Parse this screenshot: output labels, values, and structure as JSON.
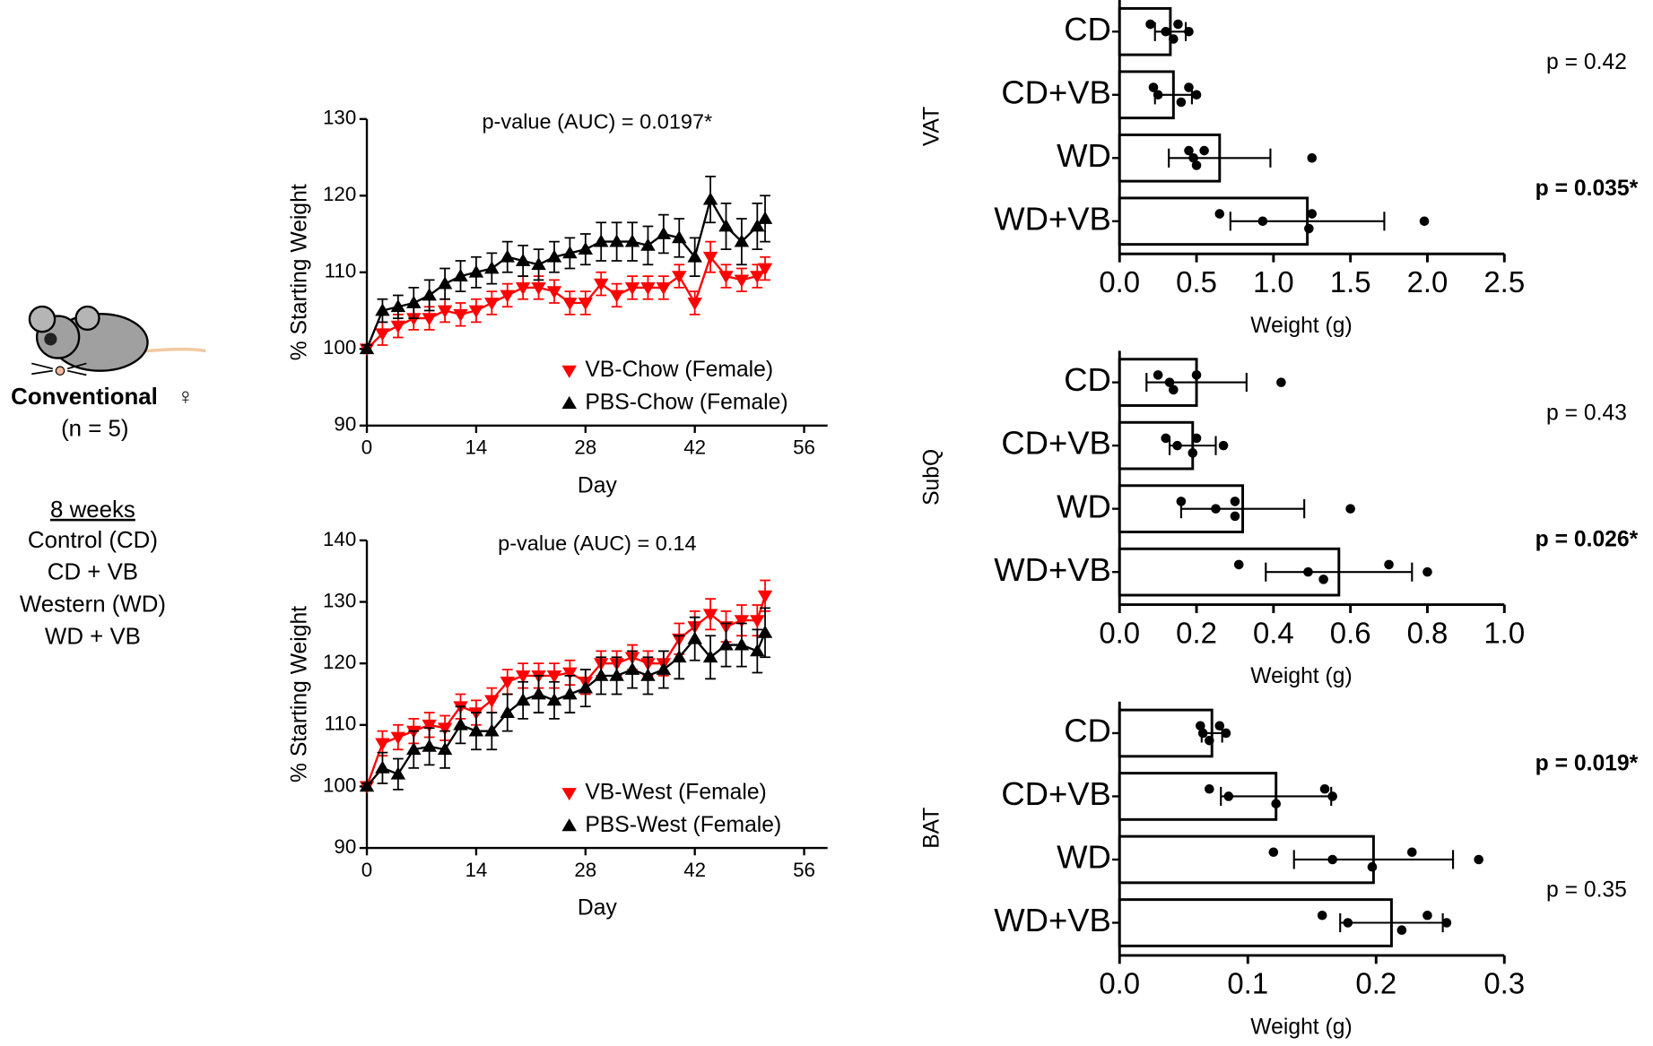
{
  "left_panel": {
    "model": "Conventional",
    "sex": "♀",
    "n": "(n = 5)",
    "duration": "8 weeks",
    "groups": [
      {
        "label": "Control (CD)",
        "color": "#000000"
      },
      {
        "label": "CD + VB",
        "color": "#ff0000"
      },
      {
        "label": "Western (WD)",
        "color": "#000000"
      },
      {
        "label": "WD + VB",
        "color": "#ff0000"
      }
    ]
  },
  "chart_data": [
    {
      "type": "line",
      "title": "p-value (AUC) = 0.0197*",
      "xlabel": "Day",
      "ylabel": "% Starting Weight",
      "xlim": [
        0,
        59
      ],
      "xticks": [
        0,
        14,
        28,
        42,
        56
      ],
      "ylim": [
        90,
        130
      ],
      "yticks": [
        90,
        100,
        110,
        120,
        130
      ],
      "legend": "lower right",
      "x": [
        0,
        2,
        4,
        6,
        8,
        10,
        12,
        14,
        16,
        18,
        20,
        22,
        24,
        26,
        28,
        30,
        32,
        34,
        36,
        38,
        40,
        42,
        44,
        46,
        48,
        50,
        51
      ],
      "series": [
        {
          "name": "VB-Chow (Female)",
          "color": "#ff0000",
          "marker": "down",
          "values": [
            100,
            102,
            103,
            104,
            104,
            105,
            104.5,
            105,
            106,
            107,
            108,
            108,
            107.5,
            106,
            106,
            108.5,
            107,
            108,
            108,
            108,
            109.5,
            106,
            112,
            109.5,
            109,
            109.5,
            110.5
          ],
          "errors": [
            0.5,
            1.5,
            1.5,
            1.5,
            1.5,
            1.5,
            1.5,
            1.5,
            1.5,
            1.5,
            1.5,
            1.5,
            1.5,
            1.5,
            1.5,
            1.5,
            1.5,
            1.5,
            1.5,
            1.5,
            1.5,
            1.5,
            2,
            1.5,
            1.5,
            1.5,
            1.5
          ]
        },
        {
          "name": "PBS-Chow (Female)",
          "color": "#000000",
          "marker": "up",
          "values": [
            100,
            105,
            105.5,
            106,
            107,
            108.5,
            109.5,
            110,
            110.5,
            112,
            111.5,
            111,
            112,
            112.5,
            113,
            114,
            114,
            114,
            113.5,
            115,
            114.5,
            112,
            119.5,
            116,
            114,
            116,
            117
          ],
          "errors": [
            0.5,
            1.5,
            1.5,
            2,
            2,
            2,
            2,
            2,
            2,
            2,
            2,
            2,
            2,
            2,
            2,
            2.5,
            2.5,
            2.5,
            2.5,
            2.5,
            2.5,
            2.5,
            3,
            3,
            3,
            3,
            3
          ]
        }
      ]
    },
    {
      "type": "line",
      "title": "p-value (AUC) = 0.14",
      "xlabel": "Day",
      "ylabel": "% Starting Weight",
      "xlim": [
        0,
        59
      ],
      "xticks": [
        0,
        14,
        28,
        42,
        56
      ],
      "ylim": [
        90,
        140
      ],
      "yticks": [
        90,
        100,
        110,
        120,
        130,
        140
      ],
      "legend": "lower right",
      "x": [
        0,
        2,
        4,
        6,
        8,
        10,
        12,
        14,
        16,
        18,
        20,
        22,
        24,
        26,
        28,
        30,
        32,
        34,
        36,
        38,
        40,
        42,
        44,
        46,
        48,
        50,
        51
      ],
      "series": [
        {
          "name": "VB-West (Female)",
          "color": "#ff0000",
          "marker": "down",
          "values": [
            100,
            107,
            108,
            109,
            110,
            109.5,
            113,
            112,
            114,
            117,
            118,
            118,
            118,
            118.5,
            117,
            120,
            120,
            121,
            120,
            120,
            124,
            126,
            128,
            126,
            127,
            127,
            131
          ],
          "errors": [
            0.5,
            2,
            2,
            2,
            2,
            2,
            2,
            2,
            2,
            2,
            2,
            2,
            2,
            2,
            2,
            2,
            2,
            2,
            2,
            2,
            2.5,
            2.5,
            2.5,
            2.5,
            2.5,
            2.5,
            2.5
          ]
        },
        {
          "name": "PBS-West (Female)",
          "color": "#000000",
          "marker": "up",
          "values": [
            100,
            103,
            102,
            106,
            106.5,
            106,
            110,
            109,
            109,
            112,
            114,
            115,
            114,
            115,
            116,
            118,
            118,
            119,
            118,
            119,
            121,
            124,
            121,
            123,
            123,
            122,
            125
          ],
          "errors": [
            0.5,
            2.5,
            2.5,
            3,
            3,
            3,
            3,
            3,
            3,
            3,
            3,
            3,
            3,
            3,
            3,
            3,
            3,
            3,
            3,
            3,
            3.5,
            3.5,
            3.5,
            3.5,
            3.5,
            3.5,
            4
          ]
        }
      ]
    },
    {
      "type": "bar",
      "orientation": "horizontal",
      "ylabel": "VAT",
      "xlabel": "Weight (g)",
      "color": "#ffffff",
      "categories": [
        "CD",
        "CD+VB",
        "WD",
        "WD+VB"
      ],
      "values": [
        0.33,
        0.35,
        0.65,
        1.22
      ],
      "errors": [
        0.1,
        0.12,
        0.33,
        0.5
      ],
      "points": [
        [
          0.2,
          0.3,
          0.35,
          0.38,
          0.45
        ],
        [
          0.22,
          0.25,
          0.4,
          0.45,
          0.5
        ],
        [
          0.45,
          0.48,
          0.5,
          0.55,
          1.25
        ],
        [
          0.65,
          0.93,
          1.23,
          1.25,
          1.98
        ]
      ],
      "xlim": [
        0,
        2.5
      ],
      "xticks": [
        {
          "value": 0,
          "label": "0.0"
        },
        0.5,
        {
          "value": 1,
          "label": "1.0"
        },
        1.5,
        {
          "value": 2,
          "label": "2.0"
        },
        2.5
      ],
      "annotations": [
        {
          "text": "p = 0.42",
          "bold": false
        },
        {
          "text": "p = 0.035*",
          "bold": true
        }
      ]
    },
    {
      "type": "bar",
      "orientation": "horizontal",
      "ylabel": "SubQ",
      "xlabel": "Weight (g)",
      "color": "#ffffff",
      "categories": [
        "CD",
        "CD+VB",
        "WD",
        "WD+VB"
      ],
      "values": [
        0.2,
        0.19,
        0.32,
        0.57
      ],
      "errors": [
        0.13,
        0.06,
        0.16,
        0.19
      ],
      "points": [
        [
          0.1,
          0.13,
          0.14,
          0.2,
          0.42
        ],
        [
          0.12,
          0.15,
          0.19,
          0.2,
          0.27
        ],
        [
          0.16,
          0.25,
          0.3,
          0.3,
          0.6
        ],
        [
          0.31,
          0.49,
          0.53,
          0.7,
          0.8
        ]
      ],
      "xlim": [
        0,
        1
      ],
      "xticks": [
        {
          "value": 0,
          "label": "0.0"
        },
        0.2,
        0.4,
        0.6,
        0.8,
        {
          "value": 1,
          "label": "1.0"
        }
      ],
      "annotations": [
        {
          "text": "p = 0.43",
          "bold": false
        },
        {
          "text": "p = 0.026*",
          "bold": true
        }
      ]
    },
    {
      "type": "bar",
      "orientation": "horizontal",
      "ylabel": "BAT",
      "xlabel": "Weight (g)",
      "color": "#ffffff",
      "categories": [
        "CD",
        "CD+VB",
        "WD",
        "WD+VB"
      ],
      "values": [
        0.072,
        0.122,
        0.198,
        0.212
      ],
      "errors": [
        0.008,
        0.043,
        0.062,
        0.04
      ],
      "points": [
        [
          0.063,
          0.065,
          0.07,
          0.078,
          0.083
        ],
        [
          0.07,
          0.085,
          0.122,
          0.16,
          0.166
        ],
        [
          0.12,
          0.166,
          0.197,
          0.228,
          0.28
        ],
        [
          0.158,
          0.178,
          0.22,
          0.24,
          0.255
        ]
      ],
      "xlim": [
        0,
        0.3
      ],
      "xticks": [
        {
          "value": 0,
          "label": "0.0"
        },
        0.1,
        0.2,
        0.3
      ],
      "annotations": [
        {
          "text": "p = 0.019*",
          "bold": true
        },
        {
          "text": "p = 0.35",
          "bold": false
        }
      ]
    }
  ]
}
